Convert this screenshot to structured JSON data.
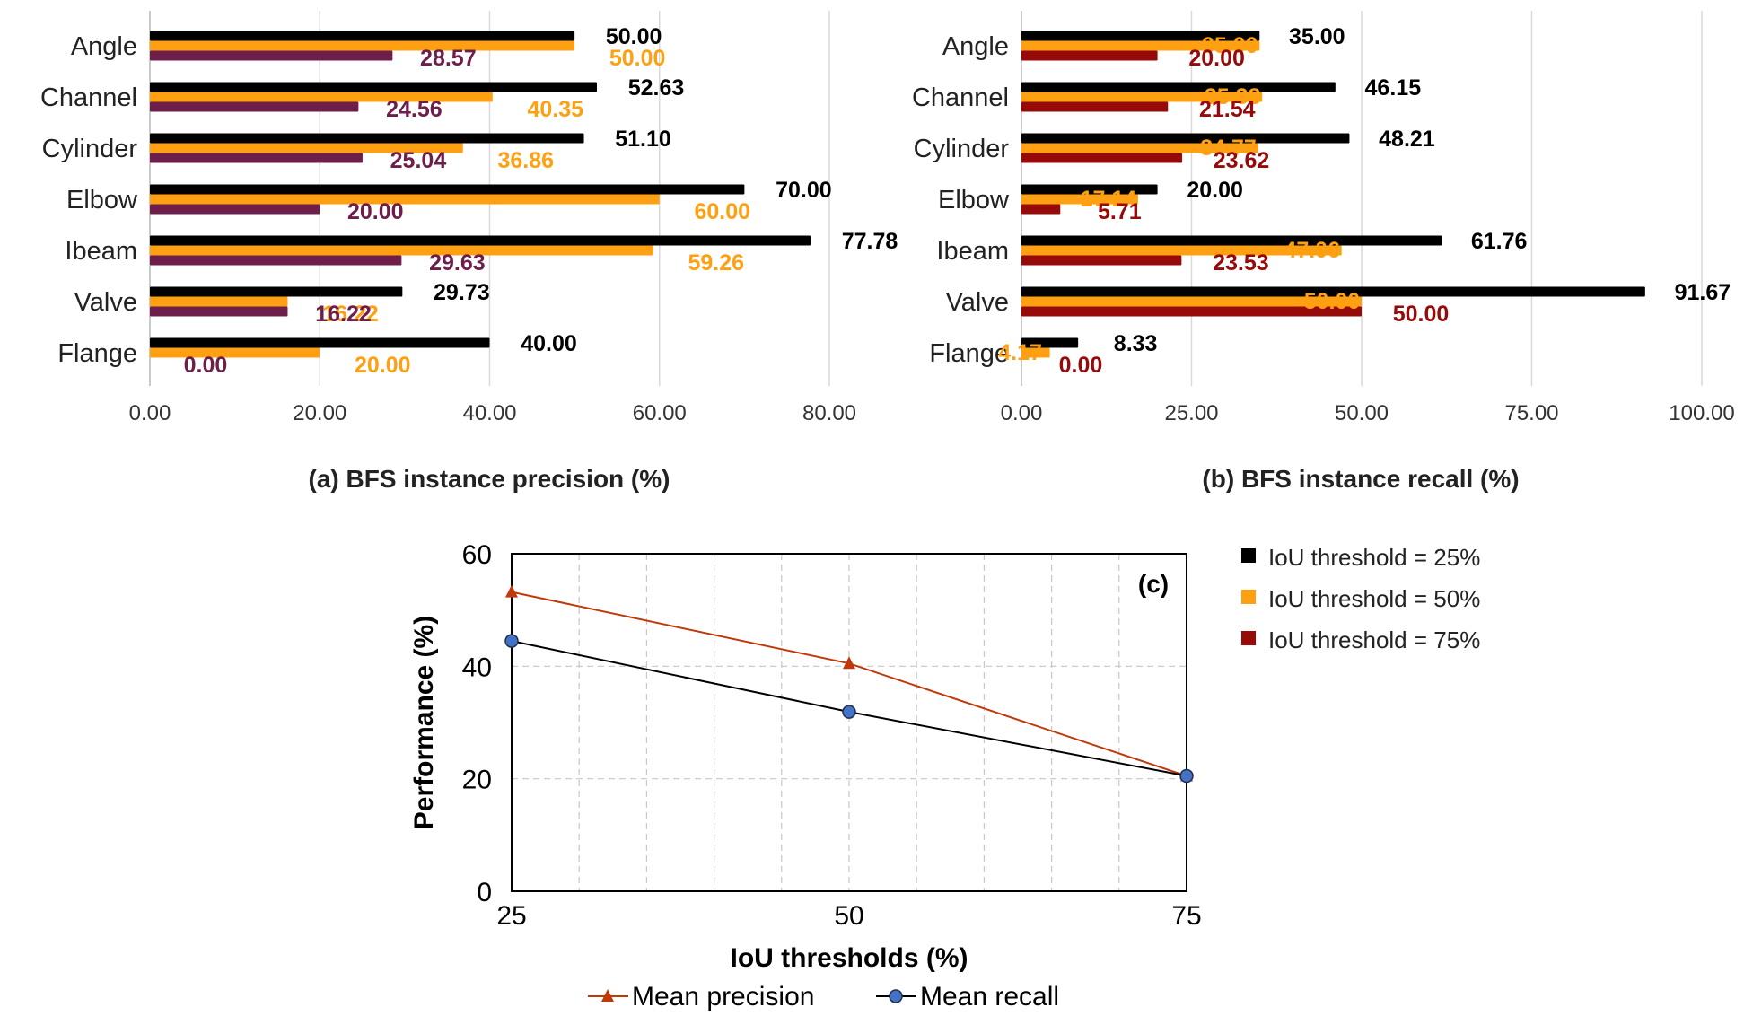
{
  "colors": {
    "iou25": "#000000",
    "iou50": "#FFA012",
    "iou75_precision": "#6E1E4B",
    "iou75_recall": "#960A0A",
    "mean_precision": "#C0390B",
    "mean_recall": "#4472C4",
    "grid": "#D9D9D9"
  },
  "chart_data": [
    {
      "id": "a",
      "type": "bar",
      "orientation": "horizontal",
      "caption": "(a) BFS instance precision (%)",
      "categories": [
        "Angle",
        "Channel",
        "Cylinder",
        "Elbow",
        "Ibeam",
        "Valve",
        "Flange"
      ],
      "series": [
        {
          "name": "IoU threshold = 25%",
          "values": [
            50.0,
            52.63,
            51.1,
            70.0,
            77.78,
            29.73,
            40.0
          ]
        },
        {
          "name": "IoU threshold = 50%",
          "values": [
            50.0,
            40.35,
            36.86,
            60.0,
            59.26,
            16.22,
            20.0
          ]
        },
        {
          "name": "IoU threshold = 75%",
          "values": [
            28.57,
            24.56,
            25.04,
            20.0,
            29.63,
            16.22,
            0.0
          ]
        }
      ],
      "value_labels": [
        [
          "50.00",
          "52.63",
          "51.10",
          "70.00",
          "77.78",
          "29.73",
          "40.00"
        ],
        [
          "50.00",
          "40.35",
          "36.86",
          "60.00",
          "59.26",
          "16.22",
          "20.00"
        ],
        [
          "28.57",
          "24.56",
          "25.04",
          "20.00",
          "29.63",
          "16.22",
          "0.00"
        ]
      ],
      "xlim": [
        0,
        80
      ],
      "xticks": [
        0,
        20,
        40,
        60,
        80
      ],
      "xtick_labels": [
        "0.00",
        "20.00",
        "40.00",
        "60.00",
        "80.00"
      ],
      "grid": true
    },
    {
      "id": "b",
      "type": "bar",
      "orientation": "horizontal",
      "caption": "(b) BFS instance recall (%)",
      "categories": [
        "Angle",
        "Channel",
        "Cylinder",
        "Elbow",
        "Ibeam",
        "Valve",
        "Flange"
      ],
      "series": [
        {
          "name": "IoU threshold = 25%",
          "values": [
            35.0,
            46.15,
            48.21,
            20.0,
            61.76,
            91.67,
            8.33
          ]
        },
        {
          "name": "IoU threshold = 50%",
          "values": [
            35.0,
            35.38,
            34.77,
            17.14,
            47.06,
            50.0,
            4.17
          ]
        },
        {
          "name": "IoU threshold = 75%",
          "values": [
            20.0,
            21.54,
            23.62,
            5.71,
            23.53,
            50.0,
            0.0
          ]
        }
      ],
      "value_labels": [
        [
          "35.00",
          "46.15",
          "48.21",
          "20.00",
          "61.76",
          "91.67",
          "8.33"
        ],
        [
          "35.00",
          "35.38",
          "34.77",
          "17.14",
          "47.06",
          "50.00",
          "4.17"
        ],
        [
          "20.00",
          "21.54",
          "23.62",
          "5.71",
          "23.53",
          "50.00",
          "0.00"
        ]
      ],
      "xlim": [
        0,
        100
      ],
      "xticks": [
        0,
        25,
        50,
        75,
        100
      ],
      "xtick_labels": [
        "0.00",
        "25.00",
        "50.00",
        "75.00",
        "100.00"
      ],
      "grid": true
    },
    {
      "id": "c",
      "type": "line",
      "panel_label": "(c)",
      "x": [
        25,
        50,
        75
      ],
      "series": [
        {
          "name": "Mean precision",
          "values": [
            53.2,
            40.5,
            20.5
          ],
          "marker": "triangle"
        },
        {
          "name": "Mean recall",
          "values": [
            44.5,
            31.9,
            20.5
          ],
          "marker": "circle"
        }
      ],
      "xlabel": "IoU thresholds (%)",
      "ylabel": "Performance (%)",
      "xlim": [
        25,
        75
      ],
      "ylim": [
        0,
        60
      ],
      "xticks": [
        25,
        50,
        75
      ],
      "xtick_labels": [
        "25",
        "50",
        "75"
      ],
      "yticks": [
        0,
        20,
        40,
        60
      ],
      "ytick_labels": [
        "0",
        "20",
        "40",
        "60"
      ],
      "grid": true
    }
  ],
  "legend": {
    "items": [
      "IoU threshold = 25%",
      "IoU threshold = 50%",
      "IoU threshold = 75%"
    ]
  }
}
